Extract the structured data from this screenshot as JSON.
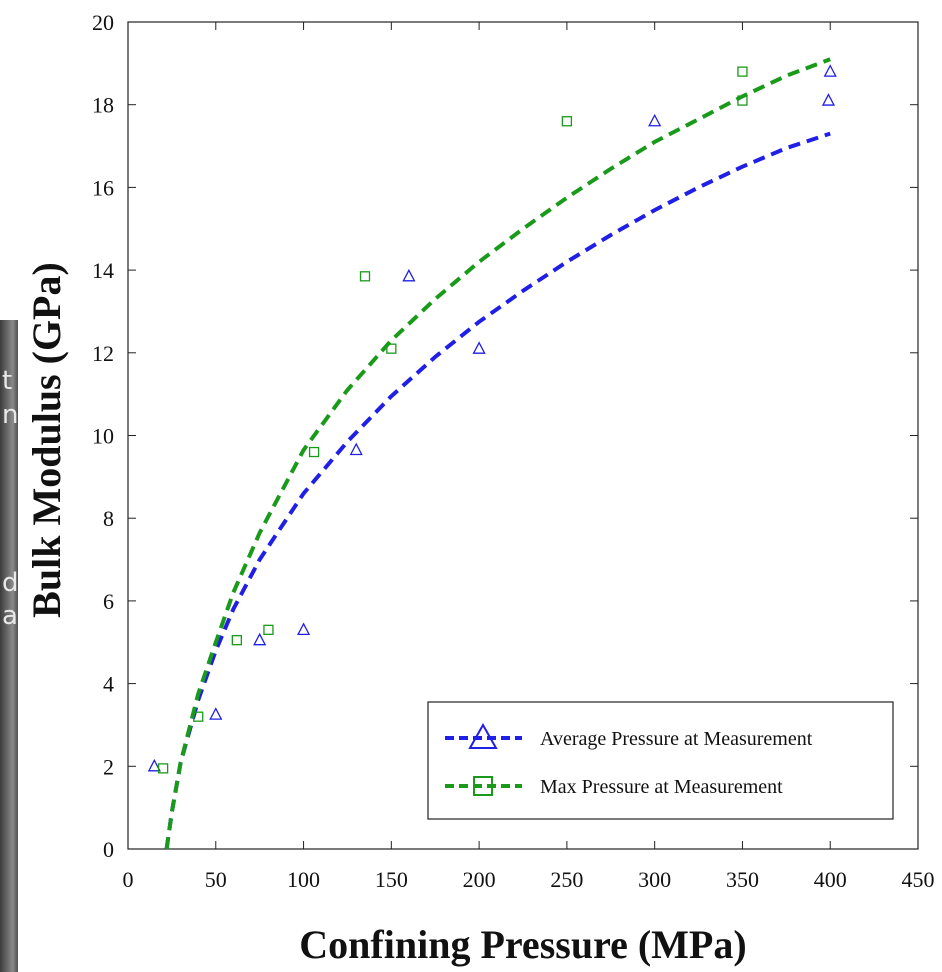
{
  "background_fragments": [
    "t",
    "n",
    "d",
    "a"
  ],
  "chart_data": {
    "type": "scatter",
    "title": "",
    "xlabel": "Confining Pressure (MPa)",
    "ylabel": "Bulk Modulus (GPa)",
    "xlim": [
      0,
      450
    ],
    "ylim": [
      0,
      20
    ],
    "xticks": [
      0,
      50,
      100,
      150,
      200,
      250,
      300,
      350,
      400,
      450
    ],
    "yticks": [
      0,
      2,
      4,
      6,
      8,
      10,
      12,
      14,
      16,
      18,
      20
    ],
    "grid": false,
    "legend_position": "bottom-right",
    "series": [
      {
        "name": "Average Pressure at Measurement",
        "marker": "triangle",
        "color": "#1f1fe6",
        "points": [
          [
            15,
            2.0
          ],
          [
            50,
            3.25
          ],
          [
            75,
            5.05
          ],
          [
            100,
            5.3
          ],
          [
            130,
            9.65
          ],
          [
            160,
            13.85
          ],
          [
            200,
            12.1
          ],
          [
            300,
            17.6
          ],
          [
            400,
            18.8
          ],
          [
            399,
            18.1
          ]
        ],
        "fit": [
          [
            22,
            0
          ],
          [
            25,
            0.9
          ],
          [
            30,
            2.1
          ],
          [
            40,
            3.6
          ],
          [
            50,
            4.8
          ],
          [
            60,
            5.8
          ],
          [
            75,
            7.0
          ],
          [
            100,
            8.6
          ],
          [
            125,
            9.85
          ],
          [
            150,
            10.95
          ],
          [
            175,
            11.9
          ],
          [
            200,
            12.75
          ],
          [
            225,
            13.5
          ],
          [
            250,
            14.2
          ],
          [
            275,
            14.85
          ],
          [
            300,
            15.45
          ],
          [
            325,
            16.0
          ],
          [
            350,
            16.5
          ],
          [
            375,
            16.95
          ],
          [
            400,
            17.3
          ]
        ]
      },
      {
        "name": "Max Pressure at Measurement",
        "marker": "square",
        "color": "#1a9a1a",
        "points": [
          [
            20,
            1.95
          ],
          [
            40,
            3.2
          ],
          [
            62,
            5.05
          ],
          [
            80,
            5.3
          ],
          [
            106,
            9.6
          ],
          [
            135,
            13.85
          ],
          [
            150,
            12.1
          ],
          [
            250,
            17.6
          ],
          [
            350,
            18.8
          ],
          [
            350,
            18.1
          ]
        ],
        "fit": [
          [
            22,
            0
          ],
          [
            25,
            0.9
          ],
          [
            30,
            2.1
          ],
          [
            40,
            3.75
          ],
          [
            50,
            5.0
          ],
          [
            60,
            6.2
          ],
          [
            75,
            7.65
          ],
          [
            100,
            9.65
          ],
          [
            125,
            11.1
          ],
          [
            150,
            12.3
          ],
          [
            175,
            13.3
          ],
          [
            200,
            14.2
          ],
          [
            225,
            15.0
          ],
          [
            250,
            15.75
          ],
          [
            275,
            16.45
          ],
          [
            300,
            17.1
          ],
          [
            325,
            17.65
          ],
          [
            350,
            18.2
          ],
          [
            375,
            18.7
          ],
          [
            400,
            19.1
          ]
        ]
      }
    ]
  }
}
